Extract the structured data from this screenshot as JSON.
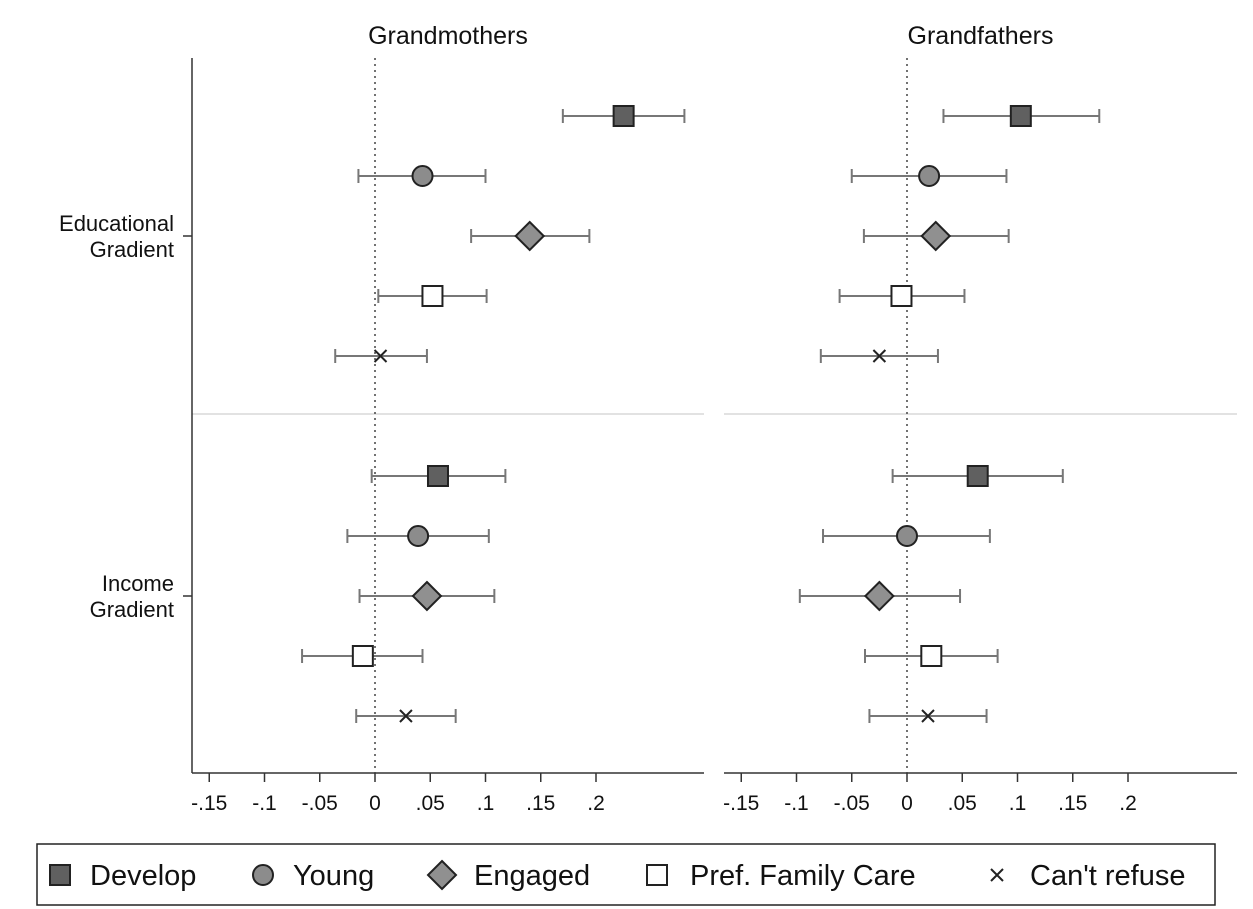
{
  "chart_data": {
    "type": "scatter",
    "subtype": "coefficient plot with 95% confidence intervals, two panels",
    "panels": [
      {
        "title": "Grandmothers",
        "groups": [
          {
            "label_lines": [
              "Educational",
              "Gradient"
            ],
            "points": [
              {
                "series": "Develop",
                "estimate": 0.225,
                "ci": [
                  0.17,
                  0.28
                ]
              },
              {
                "series": "Young",
                "estimate": 0.043,
                "ci": [
                  -0.015,
                  0.1
                ]
              },
              {
                "series": "Engaged",
                "estimate": 0.14,
                "ci": [
                  0.087,
                  0.194
                ]
              },
              {
                "series": "Pref. Family Care",
                "estimate": 0.052,
                "ci": [
                  0.003,
                  0.101
                ]
              },
              {
                "series": "Can't refuse",
                "estimate": 0.005,
                "ci": [
                  -0.036,
                  0.047
                ]
              }
            ]
          },
          {
            "label_lines": [
              "Income",
              "Gradient"
            ],
            "points": [
              {
                "series": "Develop",
                "estimate": 0.057,
                "ci": [
                  -0.003,
                  0.118
                ]
              },
              {
                "series": "Young",
                "estimate": 0.039,
                "ci": [
                  -0.025,
                  0.103
                ]
              },
              {
                "series": "Engaged",
                "estimate": 0.047,
                "ci": [
                  -0.014,
                  0.108
                ]
              },
              {
                "series": "Pref. Family Care",
                "estimate": -0.011,
                "ci": [
                  -0.066,
                  0.043
                ]
              },
              {
                "series": "Can't refuse",
                "estimate": 0.028,
                "ci": [
                  -0.017,
                  0.073
                ]
              }
            ]
          }
        ]
      },
      {
        "title": "Grandfathers",
        "groups": [
          {
            "label_lines": [
              "Educational",
              "Gradient"
            ],
            "points": [
              {
                "series": "Develop",
                "estimate": 0.103,
                "ci": [
                  0.033,
                  0.174
                ]
              },
              {
                "series": "Young",
                "estimate": 0.02,
                "ci": [
                  -0.05,
                  0.09
                ]
              },
              {
                "series": "Engaged",
                "estimate": 0.026,
                "ci": [
                  -0.039,
                  0.092
                ]
              },
              {
                "series": "Pref. Family Care",
                "estimate": -0.005,
                "ci": [
                  -0.061,
                  0.052
                ]
              },
              {
                "series": "Can't refuse",
                "estimate": -0.025,
                "ci": [
                  -0.078,
                  0.028
                ]
              }
            ]
          },
          {
            "label_lines": [
              "Income",
              "Gradient"
            ],
            "points": [
              {
                "series": "Develop",
                "estimate": 0.064,
                "ci": [
                  -0.013,
                  0.141
                ]
              },
              {
                "series": "Young",
                "estimate": 0.0,
                "ci": [
                  -0.076,
                  0.075
                ]
              },
              {
                "series": "Engaged",
                "estimate": -0.025,
                "ci": [
                  -0.097,
                  0.048
                ]
              },
              {
                "series": "Pref. Family Care",
                "estimate": 0.022,
                "ci": [
                  -0.038,
                  0.082
                ]
              },
              {
                "series": "Can't refuse",
                "estimate": 0.019,
                "ci": [
                  -0.034,
                  0.072
                ]
              }
            ]
          }
        ]
      }
    ],
    "x_ticks": [
      -0.15,
      -0.1,
      -0.05,
      0,
      0.05,
      0.1,
      0.15,
      0.2
    ],
    "x_tick_labels": [
      "-.15",
      "-.1",
      "-.05",
      "0",
      ".05",
      ".1",
      ".15",
      ".2"
    ],
    "xlim": [
      -0.165,
      0.297
    ],
    "reference_line_x": 0,
    "legend": {
      "placement": "bottom",
      "entries": [
        {
          "name": "Develop",
          "marker": "square",
          "fill": "#606060"
        },
        {
          "name": "Young",
          "marker": "circle",
          "fill": "#8c8c8c"
        },
        {
          "name": "Engaged",
          "marker": "diamond",
          "fill": "#909090"
        },
        {
          "name": "Pref. Family Care",
          "marker": "hollow-square",
          "fill": "#ffffff"
        },
        {
          "name": "Can't refuse",
          "marker": "x",
          "fill": "none"
        }
      ]
    },
    "colors": {
      "ci_line": "#777777",
      "marker_stroke": "#222222",
      "separator": "#d9d9d9",
      "axis": "#333333"
    }
  }
}
